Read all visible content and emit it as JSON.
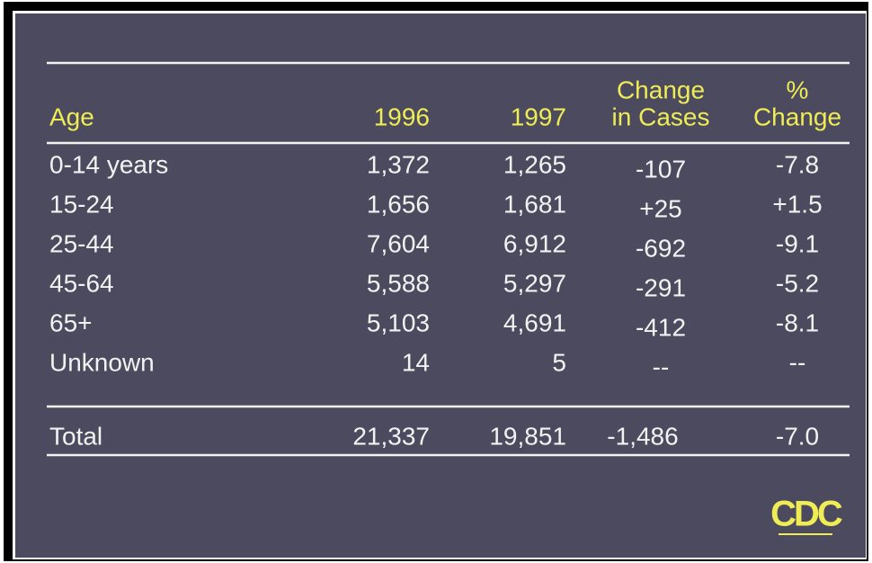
{
  "table": {
    "header": [
      [
        "Age"
      ],
      [
        "1996"
      ],
      [
        "1997"
      ],
      [
        "Change",
        "in Cases"
      ],
      [
        "%",
        "Change"
      ]
    ],
    "rows": [
      [
        "0-14 years",
        "1,372",
        "1,265",
        "-107",
        "-7.8"
      ],
      [
        "15-24",
        "1,656",
        "1,681",
        "+25",
        "+1.5"
      ],
      [
        "25-44",
        "7,604",
        "6,912",
        "-692",
        "-9.1"
      ],
      [
        "45-64",
        "5,588",
        "5,297",
        "-291",
        "-5.2"
      ],
      [
        "65+",
        "5,103",
        "4,691",
        "-412",
        "-8.1"
      ],
      [
        "Unknown",
        "14",
        "5",
        "--",
        "--"
      ]
    ],
    "total": [
      "Total",
      "21,337",
      "19,851",
      "-1,486",
      "-7.0"
    ]
  },
  "logo": "CDC"
}
